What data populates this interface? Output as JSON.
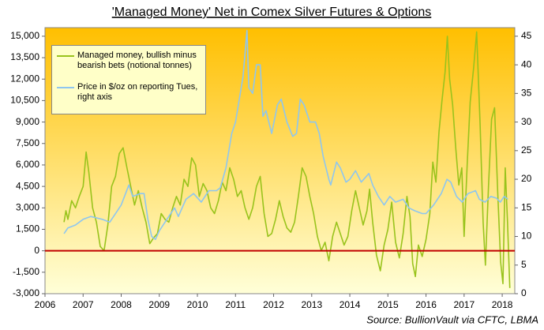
{
  "chart_data": {
    "type": "line",
    "title": "'Managed Money' Net in Comex Silver Futures & Options",
    "source": "Source: BullionVault via CFTC, LBMA",
    "xlim": [
      2006,
      2018.33
    ],
    "xticks": [
      2006,
      2007,
      2008,
      2009,
      2010,
      2011,
      2012,
      2013,
      2014,
      2015,
      2016,
      2017,
      2018
    ],
    "ylim": [
      -3000,
      15600
    ],
    "yticks": [
      {
        "value": -3000,
        "label": "-3,000"
      },
      {
        "value": -1500,
        "label": "-1,500"
      },
      0,
      {
        "value": 1500,
        "label": "1,500"
      },
      {
        "value": 3000,
        "label": "3,000"
      },
      {
        "value": 4500,
        "label": "4,500"
      },
      {
        "value": 6000,
        "label": "6,000"
      },
      {
        "value": 7500,
        "label": "7,500"
      },
      {
        "value": 9000,
        "label": "9,000"
      },
      {
        "value": 10500,
        "label": "10,500"
      },
      {
        "value": 12000,
        "label": "12,000"
      },
      {
        "value": 13500,
        "label": "13,500"
      },
      {
        "value": 15000,
        "label": "15,000"
      }
    ],
    "y2lim": [
      0,
      46.5
    ],
    "y2ticks": [
      0,
      5,
      10,
      15,
      20,
      25,
      30,
      35,
      40,
      45
    ],
    "zero_line": {
      "value": 0,
      "color": "#c00000"
    },
    "legend": "top-left",
    "series": [
      {
        "name": "Managed money, bullish minus bearish bets (notional tonnes)",
        "color": "#99c31c",
        "x": [
          2006.5,
          2006.55,
          2006.6,
          2006.7,
          2006.8,
          2006.9,
          2007.0,
          2007.08,
          2007.15,
          2007.25,
          2007.35,
          2007.45,
          2007.55,
          2007.65,
          2007.75,
          2007.85,
          2007.95,
          2008.05,
          2008.15,
          2008.25,
          2008.35,
          2008.45,
          2008.55,
          2008.65,
          2008.75,
          2008.85,
          2008.95,
          2009.05,
          2009.15,
          2009.25,
          2009.35,
          2009.45,
          2009.55,
          2009.65,
          2009.75,
          2009.85,
          2009.95,
          2010.05,
          2010.15,
          2010.25,
          2010.35,
          2010.45,
          2010.55,
          2010.65,
          2010.75,
          2010.85,
          2010.95,
          2011.05,
          2011.15,
          2011.25,
          2011.35,
          2011.45,
          2011.55,
          2011.65,
          2011.75,
          2011.85,
          2011.95,
          2012.05,
          2012.15,
          2012.25,
          2012.35,
          2012.45,
          2012.55,
          2012.65,
          2012.75,
          2012.85,
          2012.95,
          2013.05,
          2013.15,
          2013.25,
          2013.35,
          2013.45,
          2013.55,
          2013.65,
          2013.75,
          2013.85,
          2013.95,
          2014.05,
          2014.15,
          2014.25,
          2014.35,
          2014.45,
          2014.52,
          2014.6,
          2014.7,
          2014.8,
          2014.9,
          2015.0,
          2015.1,
          2015.2,
          2015.3,
          2015.4,
          2015.5,
          2015.58,
          2015.65,
          2015.72,
          2015.8,
          2015.9,
          2016.0,
          2016.1,
          2016.18,
          2016.26,
          2016.34,
          2016.42,
          2016.5,
          2016.56,
          2016.62,
          2016.7,
          2016.78,
          2016.86,
          2016.94,
          2017.0,
          2017.08,
          2017.16,
          2017.25,
          2017.33,
          2017.42,
          2017.5,
          2017.56,
          2017.64,
          2017.72,
          2017.8,
          2017.88,
          2017.96,
          2018.02,
          2018.08,
          2018.14,
          2018.2
        ],
        "values": [
          2000,
          2800,
          2200,
          3500,
          3000,
          3800,
          4500,
          6900,
          5500,
          3000,
          2000,
          300,
          0,
          1800,
          4500,
          5200,
          6800,
          7200,
          5800,
          4500,
          3200,
          4200,
          3000,
          2000,
          500,
          900,
          1200,
          2600,
          2200,
          2000,
          3000,
          3800,
          3200,
          5000,
          4500,
          6500,
          6000,
          3800,
          4700,
          4200,
          3000,
          2600,
          3500,
          4800,
          4200,
          5800,
          5000,
          3800,
          4200,
          3000,
          2200,
          3000,
          4500,
          5200,
          2600,
          1000,
          1200,
          2200,
          3500,
          2400,
          1600,
          1300,
          2000,
          3800,
          5800,
          5200,
          3800,
          2600,
          1000,
          0,
          600,
          -700,
          1000,
          2000,
          1200,
          400,
          1000,
          2800,
          4200,
          3000,
          1800,
          2800,
          4300,
          2000,
          -300,
          -1400,
          400,
          1500,
          3400,
          600,
          -500,
          1200,
          3800,
          2400,
          -900,
          -1800,
          400,
          -400,
          800,
          2600,
          6200,
          4800,
          8300,
          10500,
          12500,
          15000,
          12000,
          10200,
          7200,
          4600,
          5800,
          1000,
          6000,
          10400,
          12800,
          15300,
          8800,
          2000,
          -1000,
          4500,
          9200,
          10000,
          4200,
          -800,
          -2300,
          5800,
          2000,
          -2600
        ]
      },
      {
        "name": "Price in $/oz on reporting Tues, right axis",
        "color": "#8ec6f0",
        "axis": "y2",
        "x": [
          2006.5,
          2006.6,
          2006.8,
          2007.0,
          2007.2,
          2007.5,
          2007.7,
          2007.9,
          2008.0,
          2008.2,
          2008.3,
          2008.5,
          2008.6,
          2008.7,
          2008.8,
          2008.9,
          2009.0,
          2009.2,
          2009.4,
          2009.5,
          2009.7,
          2009.9,
          2010.1,
          2010.3,
          2010.5,
          2010.6,
          2010.75,
          2010.9,
          2011.0,
          2011.1,
          2011.2,
          2011.3,
          2011.35,
          2011.45,
          2011.55,
          2011.65,
          2011.72,
          2011.8,
          2011.95,
          2012.1,
          2012.2,
          2012.35,
          2012.5,
          2012.6,
          2012.7,
          2012.8,
          2012.95,
          2013.1,
          2013.2,
          2013.3,
          2013.45,
          2013.5,
          2013.65,
          2013.75,
          2013.9,
          2014.0,
          2014.15,
          2014.3,
          2014.5,
          2014.6,
          2014.75,
          2014.9,
          2015.05,
          2015.2,
          2015.4,
          2015.55,
          2015.7,
          2015.9,
          2016.0,
          2016.2,
          2016.4,
          2016.55,
          2016.65,
          2016.8,
          2016.95,
          2017.1,
          2017.3,
          2017.4,
          2017.55,
          2017.7,
          2017.85,
          2017.95,
          2018.05,
          2018.15
        ],
        "values": [
          10.5,
          11.5,
          12,
          13,
          13.5,
          13,
          12.5,
          14.5,
          15.5,
          19,
          17,
          17.5,
          17.5,
          13,
          10,
          9.5,
          11,
          13,
          15,
          13.5,
          16.5,
          17.5,
          16,
          18,
          18,
          18.5,
          22,
          28,
          30,
          34,
          38,
          46,
          36,
          35,
          40,
          40,
          31,
          32,
          28,
          33,
          34,
          30,
          27.5,
          28,
          34,
          33,
          30,
          30,
          28,
          24,
          20,
          19,
          23,
          22,
          19.5,
          20,
          21.5,
          19.5,
          21,
          19,
          17,
          15.5,
          17,
          16,
          16.5,
          15,
          14.5,
          14,
          14,
          15.5,
          17.5,
          20,
          19.5,
          17,
          16,
          17.5,
          18,
          16.5,
          16,
          17,
          16.7,
          16,
          17,
          16.5
        ]
      }
    ]
  }
}
